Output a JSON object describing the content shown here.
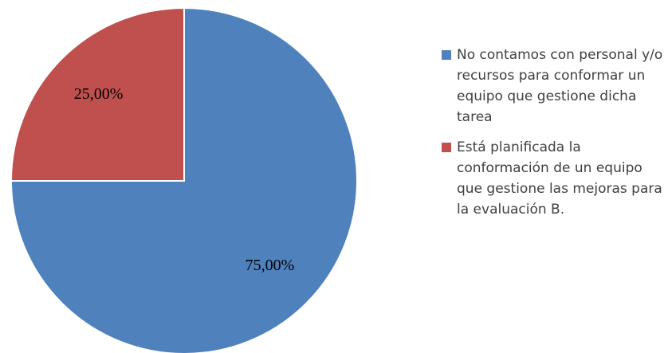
{
  "chart_data": {
    "type": "pie",
    "categories": [
      "No contamos con personal y/o recursos para conformar un equipo que gestione dicha tarea",
      "Está planificada la conformación de un equipo que gestione las mejoras para la evaluación B."
    ],
    "values": [
      75,
      25
    ],
    "value_labels": [
      "75,00%",
      "25,00%"
    ],
    "colors": [
      "#4f81bd",
      "#c0504d"
    ],
    "legend": "right"
  }
}
